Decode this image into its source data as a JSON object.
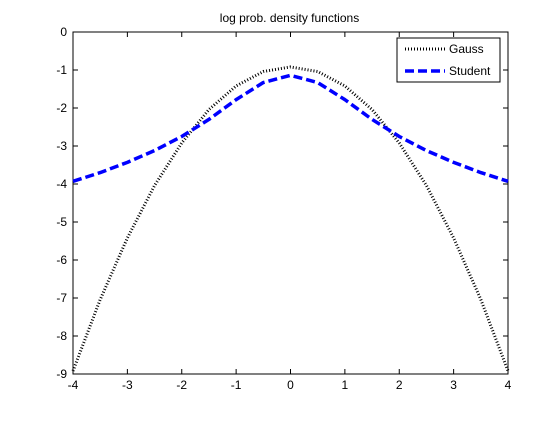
{
  "chart_data": {
    "type": "line",
    "title": "log prob. density functions",
    "xlabel": "",
    "ylabel": "",
    "xlim": [
      -4,
      4
    ],
    "ylim": [
      -9,
      0
    ],
    "xticks": [
      -4,
      -3,
      -2,
      -1,
      0,
      1,
      2,
      3,
      4
    ],
    "yticks": [
      0,
      -1,
      -2,
      -3,
      -4,
      -5,
      -6,
      -7,
      -8,
      -9
    ],
    "grid": false,
    "legend": {
      "position": "top-right"
    },
    "series": [
      {
        "name": "Gauss",
        "color": "#000000",
        "style": "dotted",
        "x": [
          -4,
          -3.5,
          -3,
          -2.5,
          -2,
          -1.5,
          -1,
          -0.5,
          0,
          0.5,
          1,
          1.5,
          2,
          2.5,
          3,
          3.5,
          4
        ],
        "y": [
          -8.92,
          -7.04,
          -5.42,
          -4.04,
          -2.92,
          -2.04,
          -1.42,
          -1.04,
          -0.92,
          -1.04,
          -1.42,
          -2.04,
          -2.92,
          -4.04,
          -5.42,
          -7.04,
          -8.92
        ]
      },
      {
        "name": "Student",
        "color": "#0000ff",
        "style": "dashed",
        "x": [
          -4,
          -3.5,
          -3,
          -2.5,
          -2,
          -1.5,
          -1,
          -0.5,
          0,
          0.5,
          1,
          1.5,
          2,
          2.5,
          3,
          3.5,
          4
        ],
        "y": [
          -3.93,
          -3.7,
          -3.43,
          -3.12,
          -2.75,
          -2.3,
          -1.78,
          -1.33,
          -1.14,
          -1.33,
          -1.78,
          -2.3,
          -2.75,
          -3.12,
          -3.43,
          -3.7,
          -3.93
        ]
      }
    ]
  }
}
